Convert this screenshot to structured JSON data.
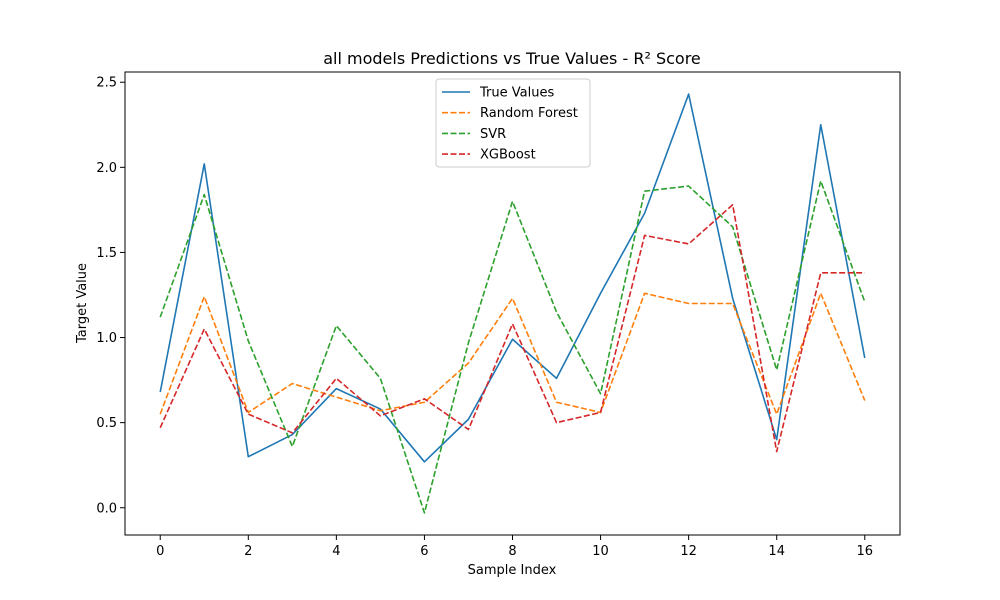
{
  "chart_data": {
    "type": "line",
    "title": "all models Predictions vs True Values - R² Score",
    "xlabel": "Sample Index",
    "ylabel": "Target Value",
    "xlim": [
      -0.8,
      16.8
    ],
    "ylim": [
      -0.16,
      2.56
    ],
    "xticks": [
      0,
      2,
      4,
      6,
      8,
      10,
      12,
      14,
      16
    ],
    "yticks": [
      0.0,
      0.5,
      1.0,
      1.5,
      2.0,
      2.5
    ],
    "ytick_labels": [
      "0.0",
      "0.5",
      "1.0",
      "1.5",
      "2.0",
      "2.5"
    ],
    "legend_position": "upper-center",
    "grid": false,
    "x": [
      0,
      1,
      2,
      3,
      4,
      5,
      6,
      7,
      8,
      9,
      10,
      11,
      12,
      13,
      14,
      15,
      16
    ],
    "series": [
      {
        "name": "True Values",
        "style": "solid",
        "color": "#1f77b4",
        "values": [
          0.68,
          2.02,
          0.3,
          0.43,
          0.7,
          0.58,
          0.27,
          0.52,
          0.99,
          0.76,
          1.26,
          1.73,
          2.43,
          1.23,
          0.4,
          2.25,
          0.88
        ]
      },
      {
        "name": "Random Forest",
        "style": "dashed",
        "color": "#ff7f0e",
        "values": [
          0.55,
          1.24,
          0.56,
          0.73,
          0.65,
          0.57,
          0.62,
          0.85,
          1.23,
          0.62,
          0.56,
          1.26,
          1.2,
          1.2,
          0.55,
          1.26,
          0.63
        ]
      },
      {
        "name": "SVR",
        "style": "dashed",
        "color": "#2ca02c",
        "values": [
          1.12,
          1.84,
          0.98,
          0.36,
          1.07,
          0.76,
          -0.03,
          0.97,
          1.8,
          1.15,
          0.67,
          1.86,
          1.89,
          1.65,
          0.81,
          1.92,
          1.21
        ]
      },
      {
        "name": "XGBoost",
        "style": "dashed",
        "color": "#d62728",
        "values": [
          0.47,
          1.05,
          0.55,
          0.44,
          0.76,
          0.54,
          0.64,
          0.46,
          1.08,
          0.5,
          0.56,
          1.6,
          1.55,
          1.78,
          0.33,
          1.38,
          1.38
        ]
      }
    ]
  }
}
